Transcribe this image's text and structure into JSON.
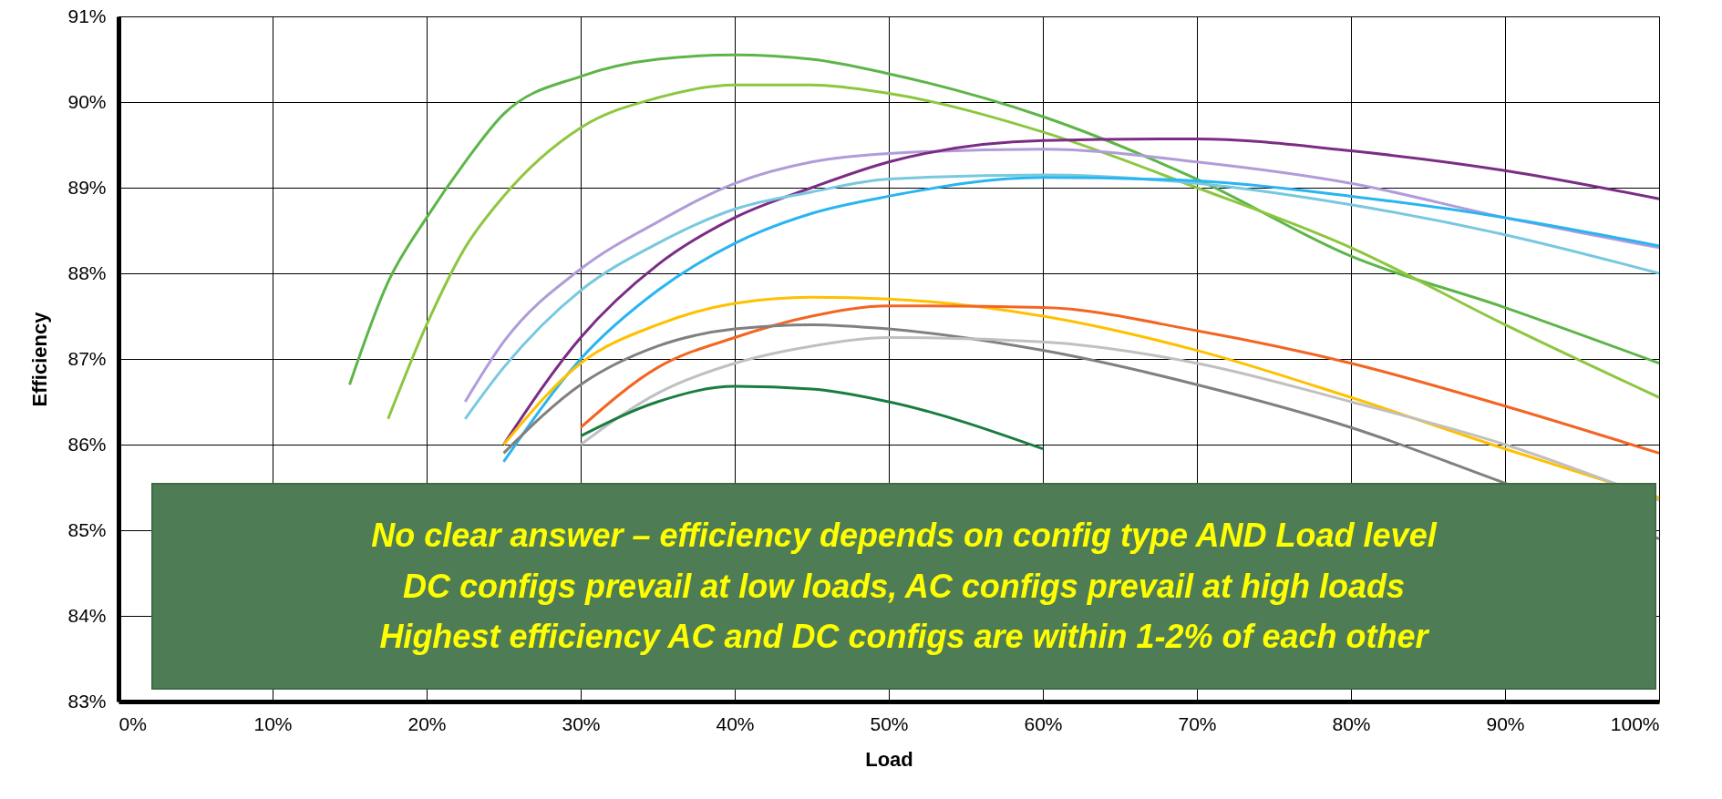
{
  "chart_data": {
    "type": "line",
    "xlabel": "Load",
    "ylabel": "Efficiency",
    "x": [
      15,
      17.5,
      20,
      22.5,
      25,
      30,
      35,
      40,
      45,
      50,
      60,
      70,
      80,
      90,
      100
    ],
    "xlim": [
      0,
      100
    ],
    "ylim": [
      83,
      91
    ],
    "xticks": [
      {
        "value": 0,
        "label": "0%"
      },
      {
        "value": 10,
        "label": "10%"
      },
      {
        "value": 20,
        "label": "20%"
      },
      {
        "value": 30,
        "label": "30%"
      },
      {
        "value": 40,
        "label": "40%"
      },
      {
        "value": 50,
        "label": "50%"
      },
      {
        "value": 60,
        "label": "60%"
      },
      {
        "value": 70,
        "label": "70%"
      },
      {
        "value": 80,
        "label": "80%"
      },
      {
        "value": 90,
        "label": "90%"
      },
      {
        "value": 100,
        "label": "100%"
      }
    ],
    "yticks": [
      {
        "value": 83,
        "label": "83%"
      },
      {
        "value": 84,
        "label": "84%"
      },
      {
        "value": 85,
        "label": "85%"
      },
      {
        "value": 86,
        "label": "86%"
      },
      {
        "value": 87,
        "label": "87%"
      },
      {
        "value": 88,
        "label": "88%"
      },
      {
        "value": 89,
        "label": "89%"
      },
      {
        "value": 90,
        "label": "90%"
      },
      {
        "value": 91,
        "label": "91%"
      }
    ],
    "grid": true,
    "marker": "none",
    "line_style": "solid",
    "series": [
      {
        "color": "#5db548",
        "values": [
          86.7,
          87.9,
          88.65,
          89.3,
          89.86,
          90.3,
          90.5,
          90.55,
          90.5,
          90.33,
          89.83,
          89.1,
          88.2,
          87.6,
          86.95
        ]
      },
      {
        "color": "#8dc63f",
        "values": [
          null,
          86.3,
          87.4,
          88.3,
          88.9,
          89.7,
          90.05,
          90.2,
          90.2,
          90.1,
          89.65,
          89.0,
          88.3,
          87.4,
          86.55
        ]
      },
      {
        "color": "#b19cd9",
        "values": [
          null,
          null,
          null,
          86.5,
          87.2,
          88.05,
          88.6,
          89.05,
          89.3,
          89.4,
          89.45,
          89.3,
          89.05,
          88.65,
          88.3
        ]
      },
      {
        "color": "#7b2c84",
        "values": [
          null,
          null,
          null,
          null,
          86.0,
          87.25,
          88.1,
          88.65,
          89.0,
          89.3,
          89.55,
          89.57,
          89.43,
          89.2,
          88.87
        ]
      },
      {
        "color": "#78c8e0",
        "values": [
          null,
          null,
          null,
          86.3,
          86.9,
          87.8,
          88.35,
          88.75,
          88.95,
          89.1,
          89.15,
          89.05,
          88.8,
          88.45,
          88.0
        ]
      },
      {
        "color": "#29b5f0",
        "values": [
          null,
          null,
          null,
          null,
          85.8,
          87.0,
          87.8,
          88.35,
          88.7,
          88.9,
          89.12,
          89.08,
          88.9,
          88.65,
          88.32
        ]
      },
      {
        "color": "#ffc000",
        "values": [
          null,
          null,
          null,
          null,
          86.0,
          86.95,
          87.4,
          87.65,
          87.72,
          87.7,
          87.5,
          87.1,
          86.55,
          85.95,
          85.38
        ]
      },
      {
        "color": "#f26522",
        "values": [
          null,
          null,
          null,
          null,
          null,
          86.2,
          86.9,
          87.25,
          87.5,
          87.62,
          87.6,
          87.33,
          86.95,
          86.45,
          85.9
        ]
      },
      {
        "color": "#808080",
        "values": [
          null,
          null,
          null,
          null,
          85.9,
          86.7,
          87.15,
          87.35,
          87.4,
          87.35,
          87.1,
          86.7,
          86.2,
          85.55,
          84.9
        ]
      },
      {
        "color": "#c0c0c0",
        "values": [
          null,
          null,
          null,
          null,
          null,
          86.0,
          86.6,
          86.95,
          87.15,
          87.25,
          87.2,
          86.95,
          86.5,
          86.0,
          85.35
        ]
      },
      {
        "color": "#1a7d40",
        "values": [
          null,
          null,
          null,
          null,
          null,
          86.1,
          86.5,
          86.68,
          86.65,
          86.5,
          85.95,
          null,
          null,
          null,
          null
        ]
      }
    ],
    "annotations": [
      "No clear answer – efficiency depends on config type AND Load level",
      "DC configs prevail at low loads, AC configs prevail at high loads",
      "Highest efficiency AC and DC configs are within 1-2% of each other"
    ]
  }
}
